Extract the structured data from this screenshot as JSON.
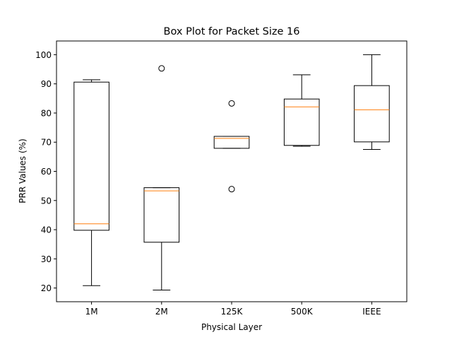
{
  "chart_data": {
    "type": "box",
    "title": "Box Plot for Packet Size 16",
    "xlabel": "Physical Layer",
    "ylabel": "PRR Values (%)",
    "ylim": [
      15.3,
      104.7
    ],
    "yticks": [
      20,
      30,
      40,
      50,
      60,
      70,
      80,
      90,
      100
    ],
    "grid": false,
    "categories": [
      "1M",
      "2M",
      "125K",
      "500K",
      "IEEE"
    ],
    "boxes": [
      {
        "category": "1M",
        "whisker_low": 20.8,
        "q1": 39.8,
        "median": 42.0,
        "q3": 90.6,
        "whisker_high": 91.4,
        "outliers": []
      },
      {
        "category": "2M",
        "whisker_low": 19.3,
        "q1": 35.7,
        "median": 53.3,
        "q3": 54.4,
        "whisker_high": 54.4,
        "outliers": [
          95.3
        ]
      },
      {
        "category": "125K",
        "whisker_low": 67.9,
        "q1": 67.9,
        "median": 71.3,
        "q3": 72.0,
        "whisker_high": 72.0,
        "outliers": [
          83.3,
          53.9
        ]
      },
      {
        "category": "500K",
        "whisker_low": 68.6,
        "q1": 68.9,
        "median": 82.1,
        "q3": 84.8,
        "whisker_high": 93.1,
        "outliers": []
      },
      {
        "category": "IEEE",
        "whisker_low": 67.5,
        "q1": 70.1,
        "median": 81.1,
        "q3": 89.4,
        "whisker_high": 100.0,
        "outliers": []
      }
    ],
    "colors": {
      "box": "#000000",
      "median": "#ff7f0e",
      "outlier": "#000000"
    }
  }
}
